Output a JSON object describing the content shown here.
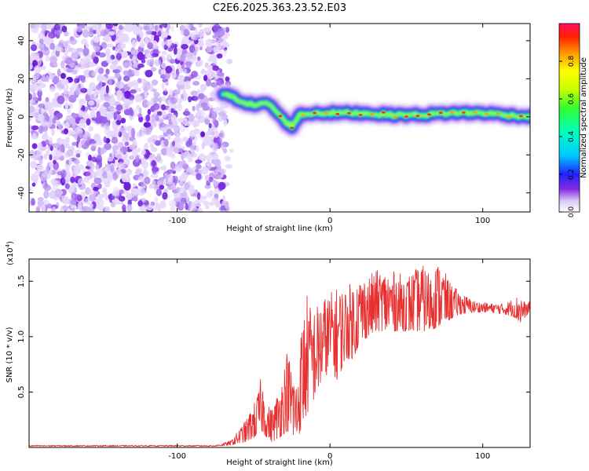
{
  "title": "C2E6.2025.363.23.52.E03",
  "colors": {
    "snr_line": "#e83030",
    "noise_violet": "#7a2ce0",
    "background": "#ffffff"
  },
  "chart_data": [
    {
      "type": "heatmap",
      "title": "C2E6.2025.363.23.52.E03",
      "xlabel": "Height of straight line (km)",
      "ylabel": "Frequency (Hz)",
      "xlim": [
        -197,
        131
      ],
      "ylim": [
        -50,
        49
      ],
      "xticks": [
        -100,
        0,
        100
      ],
      "yticks": [
        -40,
        -20,
        0,
        20,
        40
      ],
      "noise_region_x": [
        -197,
        -68
      ],
      "signal_track": {
        "x": [
          -70,
          -60,
          -50,
          -40,
          -30,
          -25,
          -20,
          -10,
          0,
          20,
          40,
          60,
          80,
          100,
          131
        ],
        "frequency": [
          12,
          9,
          6,
          7,
          -2,
          -5,
          1,
          2,
          2,
          2,
          1,
          1,
          2,
          2,
          0
        ]
      },
      "colorbar": {
        "label": "Normalized spectral amplitude",
        "range": [
          0,
          1
        ],
        "ticks": [
          0.0,
          0.2,
          0.4,
          0.6,
          0.8
        ],
        "tick_labels": [
          "0.0",
          "0.2",
          "0.4",
          "0.6",
          "0.8"
        ]
      }
    },
    {
      "type": "line",
      "xlabel": "Height of straight line (km)",
      "ylabel": "SNR (10 * v/v)",
      "yscale_label": "(x10",
      "yscale_exp": "4",
      "xlim": [
        -197,
        131
      ],
      "ylim": [
        0,
        1.7
      ],
      "xticks": [
        -100,
        0,
        100
      ],
      "yticks": [
        0.5,
        1.0,
        1.5
      ],
      "ytick_labels": [
        "0.5",
        "1.0",
        "1.5"
      ],
      "envelope": {
        "x": [
          -197,
          -75,
          -65,
          -55,
          -48,
          -45,
          -42,
          -38,
          -32,
          -28,
          -22,
          -18,
          -15,
          -12,
          -8,
          -5,
          0,
          5,
          10,
          15,
          20,
          25,
          30,
          40,
          50,
          60,
          65,
          72,
          78,
          85,
          95,
          105,
          115,
          120,
          125,
          128,
          131
        ],
        "low": [
          0.01,
          0.01,
          0.02,
          0.05,
          0.1,
          0.15,
          0.1,
          0.05,
          0.1,
          0.15,
          0.05,
          0.2,
          0.3,
          0.4,
          0.5,
          0.6,
          0.7,
          0.6,
          0.8,
          0.8,
          0.95,
          1.0,
          1.05,
          1.05,
          1.05,
          1.05,
          1.05,
          1.1,
          1.15,
          1.2,
          1.22,
          1.22,
          1.2,
          1.18,
          1.12,
          1.18,
          1.22
        ],
        "high": [
          0.02,
          0.02,
          0.06,
          0.25,
          0.45,
          0.65,
          0.4,
          0.35,
          0.6,
          0.9,
          0.6,
          1.2,
          1.4,
          1.25,
          1.3,
          1.35,
          1.4,
          1.45,
          1.45,
          1.5,
          1.55,
          1.55,
          1.6,
          1.6,
          1.55,
          1.65,
          1.6,
          1.68,
          1.5,
          1.4,
          1.32,
          1.3,
          1.3,
          1.35,
          1.38,
          1.3,
          1.32
        ]
      }
    }
  ]
}
